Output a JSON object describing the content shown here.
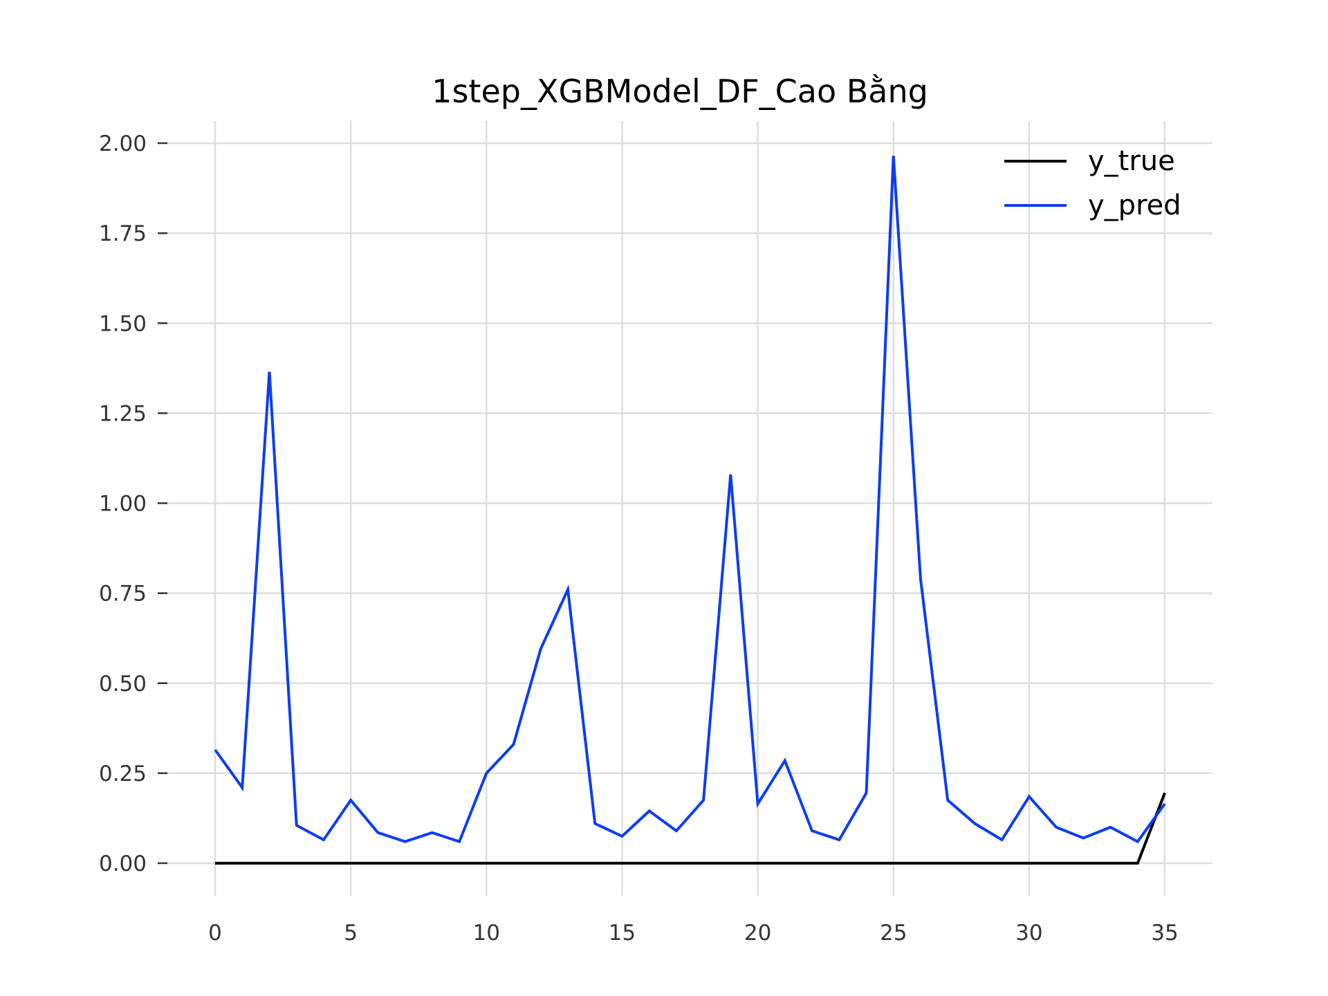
{
  "chart_data": {
    "type": "line",
    "title": "1step_XGBModel_DF_Cao Bằng",
    "xlabel": "",
    "ylabel": "",
    "xlim": [
      0,
      35
    ],
    "ylim": [
      0,
      2.0
    ],
    "x_ticks": [
      "0",
      "5",
      "10",
      "15",
      "20",
      "25",
      "30",
      "35"
    ],
    "y_ticks": [
      "0.00",
      "0.25",
      "0.50",
      "0.75",
      "1.00",
      "1.25",
      "1.50",
      "1.75",
      "2.00"
    ],
    "grid": true,
    "legend_position": "top-right",
    "x": [
      0,
      1,
      2,
      3,
      4,
      5,
      6,
      7,
      8,
      9,
      10,
      11,
      12,
      13,
      14,
      15,
      16,
      17,
      18,
      19,
      20,
      21,
      22,
      23,
      24,
      25,
      26,
      27,
      28,
      29,
      30,
      31,
      32,
      33,
      34,
      35
    ],
    "series": [
      {
        "name": "y_true",
        "color": "#000000",
        "values": [
          0,
          0,
          0,
          0,
          0,
          0,
          0,
          0,
          0,
          0,
          0,
          0,
          0,
          0,
          0,
          0,
          0,
          0,
          0,
          0,
          0,
          0,
          0,
          0,
          0,
          0,
          0,
          0,
          0,
          0,
          0,
          0,
          0,
          0,
          0,
          0.195
        ]
      },
      {
        "name": "y_pred",
        "color": "#0b3cf5",
        "values": [
          0.315,
          0.21,
          1.365,
          0.105,
          0.065,
          0.175,
          0.085,
          0.06,
          0.085,
          0.06,
          0.25,
          0.33,
          0.595,
          0.76,
          0.11,
          0.075,
          0.145,
          0.09,
          0.175,
          1.08,
          0.165,
          0.285,
          0.09,
          0.065,
          0.195,
          1.965,
          0.79,
          0.175,
          0.11,
          0.065,
          0.185,
          0.1,
          0.07,
          0.1,
          0.06,
          0.165
        ]
      }
    ]
  }
}
